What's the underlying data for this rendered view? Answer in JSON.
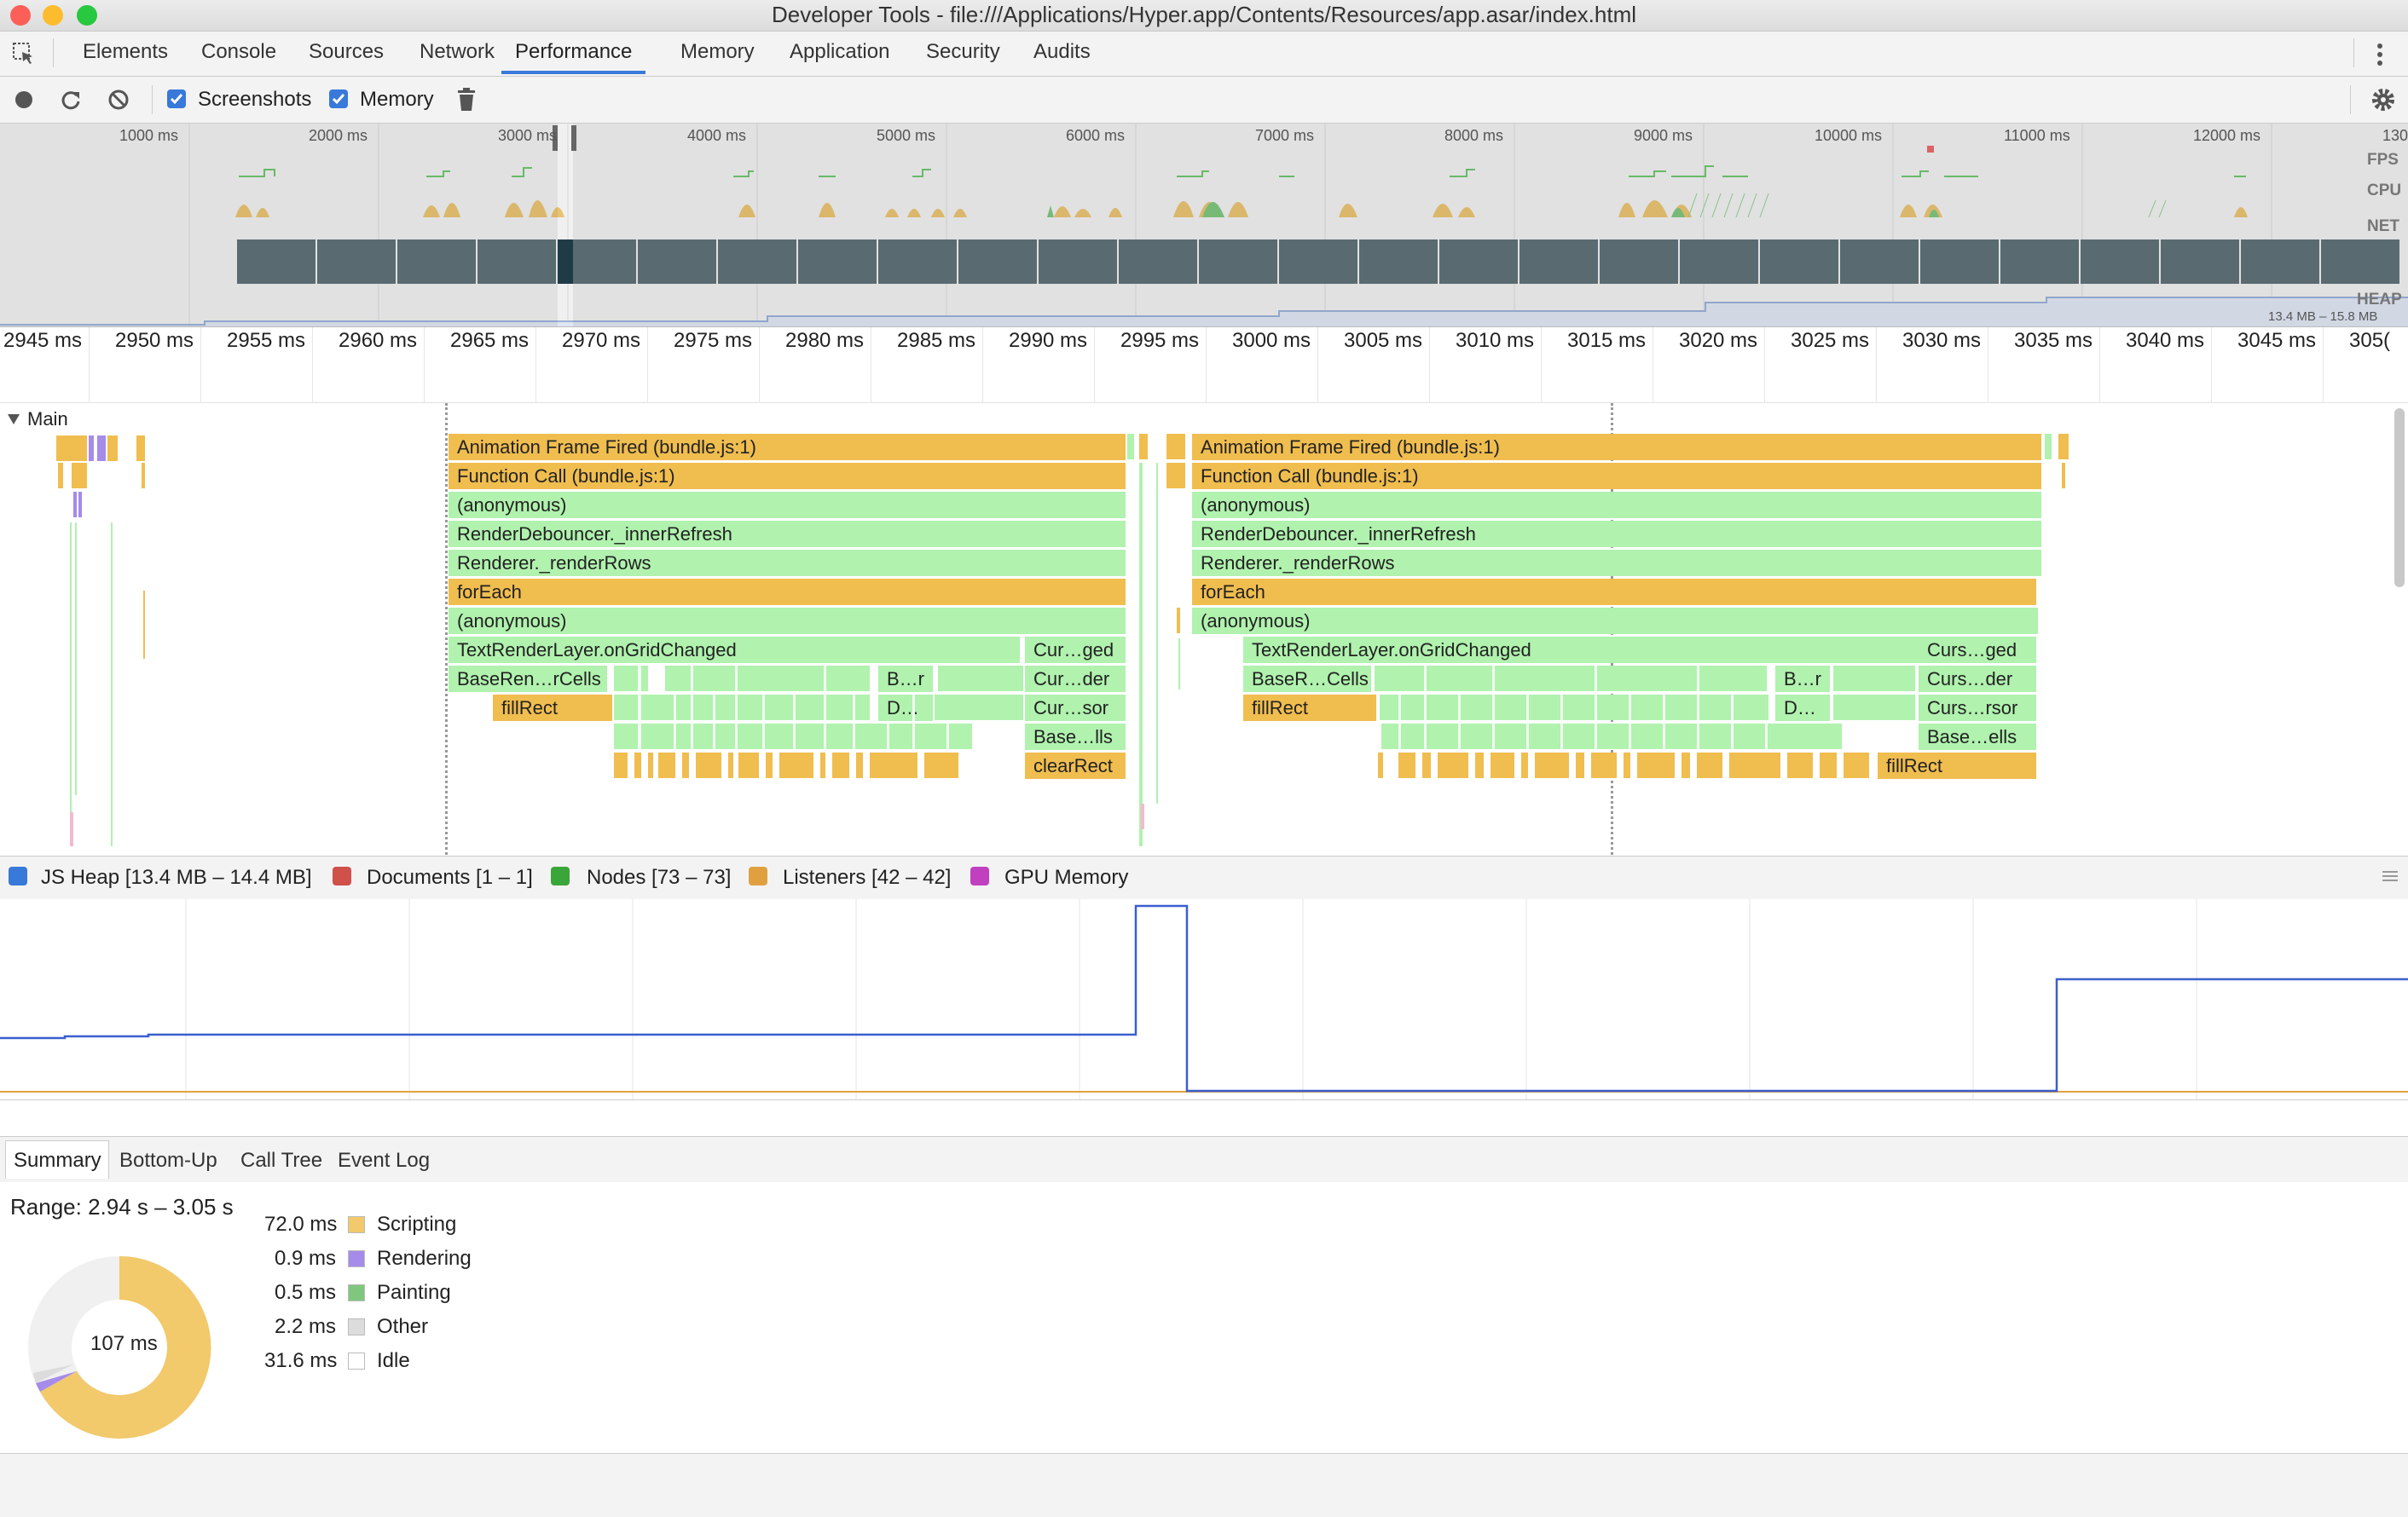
{
  "window": {
    "title": "Developer Tools - file:///Applications/Hyper.app/Contents/Resources/app.asar/index.html"
  },
  "tabs": [
    "Elements",
    "Console",
    "Sources",
    "Network",
    "Performance",
    "Memory",
    "Application",
    "Security",
    "Audits"
  ],
  "active_tab": "Performance",
  "toolbar": {
    "screenshots_label": "Screenshots",
    "memory_label": "Memory",
    "screenshots_checked": true,
    "memory_checked": true
  },
  "overview": {
    "ticks": [
      "1000 ms",
      "2000 ms",
      "3000 ms",
      "4000 ms",
      "5000 ms",
      "6000 ms",
      "7000 ms",
      "8000 ms",
      "9000 ms",
      "10000 ms",
      "11000 ms",
      "12000 ms",
      "130"
    ],
    "fps_label": "FPS",
    "cpu_label": "CPU",
    "net_label": "NET",
    "heap_label": "HEAP",
    "heap_range": "13.4 MB – 15.8 MB"
  },
  "ruler": {
    "ticks": [
      "2945 ms",
      "2950 ms",
      "2955 ms",
      "2960 ms",
      "2965 ms",
      "2970 ms",
      "2975 ms",
      "2980 ms",
      "2985 ms",
      "2990 ms",
      "2995 ms",
      "3000 ms",
      "3005 ms",
      "3010 ms",
      "3015 ms",
      "3020 ms",
      "3025 ms",
      "3030 ms",
      "3035 ms",
      "3040 ms",
      "3045 ms",
      "305("
    ]
  },
  "main": {
    "label": "Main",
    "left_stack": [
      {
        "text": "Animation Frame Fired (bundle.js:1)",
        "type": "y"
      },
      {
        "text": "Function Call (bundle.js:1)",
        "type": "y"
      },
      {
        "text": "(anonymous)",
        "type": "g"
      },
      {
        "text": "RenderDebouncer._innerRefresh",
        "type": "g"
      },
      {
        "text": "Renderer._renderRows",
        "type": "g"
      },
      {
        "text": "forEach",
        "type": "y"
      },
      {
        "text": "(anonymous)",
        "type": "g"
      },
      {
        "text": "TextRenderLayer.onGridChanged",
        "type": "g"
      }
    ],
    "left_row8": [
      "BaseRen…rCells",
      "B…r",
      "Cur…der"
    ],
    "left_row9": [
      "fillRect",
      "D…",
      "Cur…sor"
    ],
    "left_side": [
      "Cur…ged",
      "Base…lls",
      "clearRect"
    ],
    "right_stack": [
      {
        "text": "Animation Frame Fired (bundle.js:1)",
        "type": "y"
      },
      {
        "text": "Function Call (bundle.js:1)",
        "type": "y"
      },
      {
        "text": "(anonymous)",
        "type": "g"
      },
      {
        "text": "RenderDebouncer._innerRefresh",
        "type": "g"
      },
      {
        "text": "Renderer._renderRows",
        "type": "g"
      },
      {
        "text": "forEach",
        "type": "y"
      },
      {
        "text": "(anonymous)",
        "type": "g"
      },
      {
        "text": "TextRenderLayer.onGridChanged",
        "type": "g"
      }
    ],
    "right_row8": [
      "BaseR…Cells",
      "B…r",
      "Curs…der"
    ],
    "right_row9": [
      "fillRect",
      "D…",
      "Curs…rsor"
    ],
    "right_side": [
      "Curs…ged",
      "Base…ells",
      "fillRect"
    ]
  },
  "memory_legend": [
    {
      "label": "JS Heap [13.4 MB – 14.4 MB]",
      "color": "#3879d9"
    },
    {
      "label": "Documents [1 – 1]",
      "color": "#d0504a"
    },
    {
      "label": "Nodes [73 – 73]",
      "color": "#3aa63a"
    },
    {
      "label": "Listeners [42 – 42]",
      "color": "#e0a040"
    },
    {
      "label": "GPU Memory",
      "color": "#c040c0"
    }
  ],
  "bottom_tabs": [
    "Summary",
    "Bottom-Up",
    "Call Tree",
    "Event Log"
  ],
  "summary": {
    "range": "Range: 2.94 s – 3.05 s",
    "total": "107 ms",
    "items": [
      {
        "value": "72.0 ms",
        "label": "Scripting",
        "color": "#f2c96b"
      },
      {
        "value": "0.9 ms",
        "label": "Rendering",
        "color": "#a58bea"
      },
      {
        "value": "0.5 ms",
        "label": "Painting",
        "color": "#7fc67f"
      },
      {
        "value": "2.2 ms",
        "label": "Other",
        "color": "#dcdcdc"
      },
      {
        "value": "31.6 ms",
        "label": "Idle",
        "color": "#ffffff"
      }
    ]
  }
}
